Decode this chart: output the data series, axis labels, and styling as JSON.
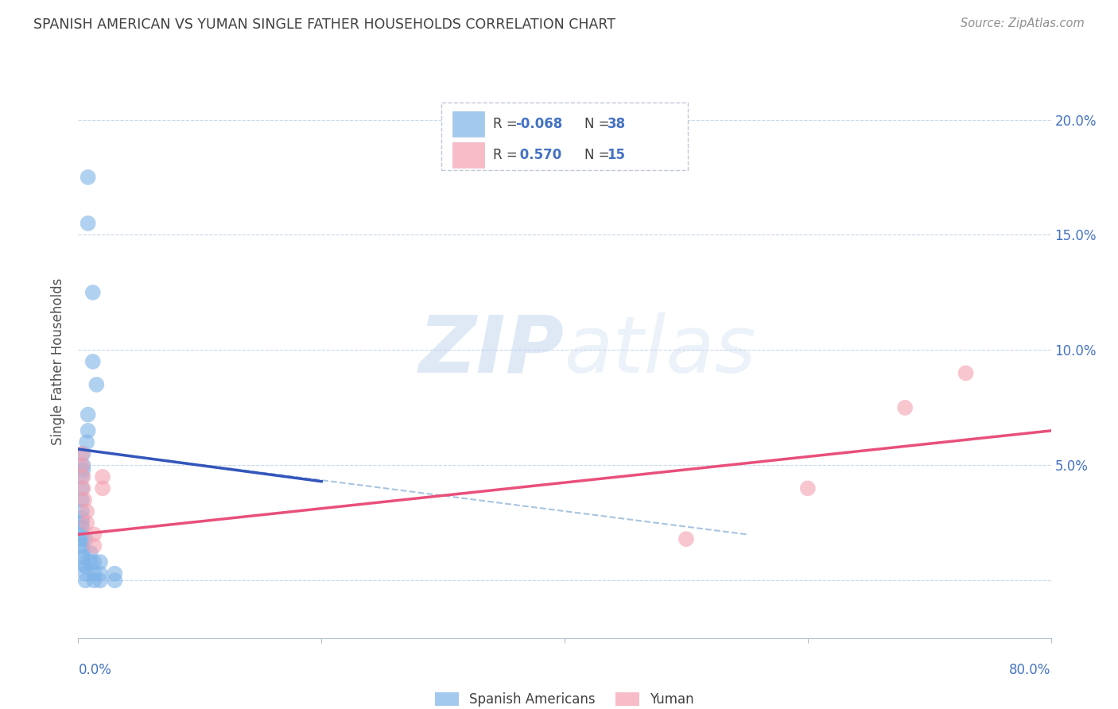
{
  "title": "SPANISH AMERICAN VS YUMAN SINGLE FATHER HOUSEHOLDS CORRELATION CHART",
  "source": "Source: ZipAtlas.com",
  "ylabel": "Single Father Households",
  "xlim": [
    0.0,
    0.8
  ],
  "ylim": [
    -0.025,
    0.215
  ],
  "blue_color": "#7EB3E8",
  "pink_color": "#F4A0B0",
  "blue_line_color": "#3355BB",
  "pink_line_color": "#E8507A",
  "dashed_line_color": "#A8C4E0",
  "title_color": "#404040",
  "axis_label_color": "#4472C4",
  "blue_R": "-0.068",
  "blue_N": "38",
  "pink_R": "0.570",
  "pink_N": "15",
  "blue_points_x": [
    0.008,
    0.008,
    0.012,
    0.012,
    0.015,
    0.008,
    0.008,
    0.007,
    0.004,
    0.004,
    0.004,
    0.003,
    0.003,
    0.003,
    0.003,
    0.003,
    0.003,
    0.003,
    0.003,
    0.003,
    0.003,
    0.004,
    0.004,
    0.004,
    0.006,
    0.006,
    0.006,
    0.006,
    0.01,
    0.01,
    0.013,
    0.013,
    0.013,
    0.018,
    0.018,
    0.018,
    0.03,
    0.03
  ],
  "blue_points_y": [
    0.175,
    0.155,
    0.125,
    0.095,
    0.085,
    0.072,
    0.065,
    0.06,
    0.055,
    0.05,
    0.048,
    0.045,
    0.04,
    0.035,
    0.03,
    0.027,
    0.025,
    0.023,
    0.02,
    0.018,
    0.015,
    0.013,
    0.01,
    0.007,
    0.006,
    0.003,
    0.0,
    0.018,
    0.008,
    0.012,
    0.008,
    0.003,
    0.0,
    0.008,
    0.003,
    0.0,
    0.003,
    0.0
  ],
  "pink_points_x": [
    0.003,
    0.003,
    0.004,
    0.004,
    0.005,
    0.007,
    0.007,
    0.013,
    0.013,
    0.02,
    0.02,
    0.5,
    0.6,
    0.68,
    0.73
  ],
  "pink_points_y": [
    0.055,
    0.05,
    0.045,
    0.04,
    0.035,
    0.03,
    0.025,
    0.02,
    0.015,
    0.045,
    0.04,
    0.018,
    0.04,
    0.075,
    0.09
  ],
  "blue_line_x": [
    0.0,
    0.2
  ],
  "blue_line_y": [
    0.057,
    0.043
  ],
  "pink_line_x": [
    0.0,
    0.8
  ],
  "pink_line_y": [
    0.02,
    0.065
  ],
  "dashed_line_x": [
    0.0,
    0.55
  ],
  "dashed_line_y": [
    0.057,
    0.02
  ],
  "watermark_zip": "ZIP",
  "watermark_atlas": "atlas",
  "background_color": "#FFFFFF",
  "grid_color": "#C8D8EC",
  "ytick_values": [
    0.0,
    0.05,
    0.1,
    0.15,
    0.2
  ]
}
